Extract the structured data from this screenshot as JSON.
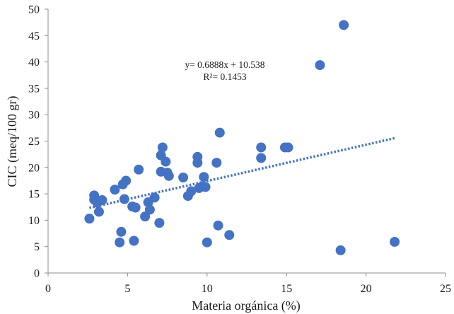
{
  "chart_data": {
    "type": "scatter",
    "title": "",
    "xlabel": "Materia orgánica (%)",
    "ylabel": "CIC (meq/100 gr)",
    "xlim": [
      0,
      25
    ],
    "ylim": [
      0,
      50
    ],
    "xticks": [
      0,
      5,
      10,
      15,
      20,
      25
    ],
    "yticks": [
      0,
      5,
      10,
      15,
      20,
      25,
      30,
      35,
      40,
      45,
      50
    ],
    "grid": false,
    "colors": {
      "points": "#4472c4",
      "trendline": "#4472c4"
    },
    "trendline": {
      "equation": "y= 0.6888x + 10.538",
      "r2": "R²= 0.1453",
      "slope": 0.6888,
      "intercept": 10.538,
      "x_range": [
        2.6,
        21.8
      ]
    },
    "series": [
      {
        "points": [
          [
            2.6,
            10.3
          ],
          [
            2.9,
            14.7
          ],
          [
            2.9,
            13.9
          ],
          [
            3.1,
            13.3
          ],
          [
            3.2,
            11.6
          ],
          [
            3.4,
            13.8
          ],
          [
            4.2,
            15.8
          ],
          [
            4.5,
            5.8
          ],
          [
            4.6,
            7.8
          ],
          [
            4.7,
            16.8
          ],
          [
            4.8,
            14.0
          ],
          [
            4.9,
            17.5
          ],
          [
            5.3,
            12.6
          ],
          [
            5.4,
            6.1
          ],
          [
            5.5,
            12.4
          ],
          [
            5.7,
            19.6
          ],
          [
            6.1,
            10.7
          ],
          [
            6.3,
            13.4
          ],
          [
            6.4,
            12.0
          ],
          [
            6.7,
            14.3
          ],
          [
            7.0,
            9.5
          ],
          [
            7.1,
            22.3
          ],
          [
            7.1,
            19.2
          ],
          [
            7.2,
            23.8
          ],
          [
            7.4,
            21.1
          ],
          [
            7.5,
            19.0
          ],
          [
            7.6,
            18.4
          ],
          [
            8.5,
            18.1
          ],
          [
            8.8,
            14.6
          ],
          [
            9.0,
            15.5
          ],
          [
            9.4,
            22.0
          ],
          [
            9.4,
            20.9
          ],
          [
            9.5,
            16.1
          ],
          [
            9.7,
            16.4
          ],
          [
            9.8,
            18.2
          ],
          [
            9.9,
            16.3
          ],
          [
            10.0,
            5.8
          ],
          [
            10.6,
            20.9
          ],
          [
            10.7,
            9.0
          ],
          [
            10.8,
            26.6
          ],
          [
            11.4,
            7.2
          ],
          [
            13.4,
            23.8
          ],
          [
            13.4,
            21.8
          ],
          [
            14.9,
            23.8
          ],
          [
            15.1,
            23.8
          ],
          [
            17.1,
            39.4
          ],
          [
            18.4,
            4.3
          ],
          [
            18.6,
            47.0
          ],
          [
            21.8,
            5.9
          ]
        ]
      }
    ]
  }
}
